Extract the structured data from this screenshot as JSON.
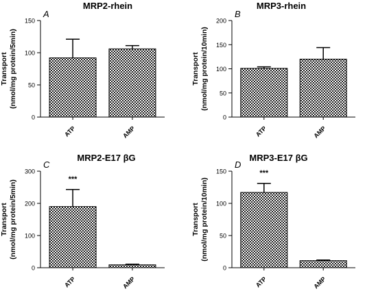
{
  "chart_data": [
    {
      "type": "bar",
      "panel_label": "A",
      "title": "MRP2-rhein",
      "ylabel_line1": "Transport",
      "ylabel_line2": "(nmol/mg protein/5min)",
      "categories": [
        "ATP",
        "AMP"
      ],
      "values": [
        92,
        106
      ],
      "errors": [
        29,
        5
      ],
      "ylim": [
        0,
        150
      ],
      "yticks": [
        0,
        50,
        100,
        150
      ],
      "annotation": ""
    },
    {
      "type": "bar",
      "panel_label": "B",
      "title": "MRP3-rhein",
      "ylabel_line1": "Transport",
      "ylabel_line2": "(nmol/mg protein/10min)",
      "categories": [
        "ATP",
        "AMP"
      ],
      "values": [
        101,
        120
      ],
      "errors": [
        3,
        24
      ],
      "ylim": [
        0,
        200
      ],
      "yticks": [
        0,
        50,
        100,
        150,
        200
      ],
      "annotation": ""
    },
    {
      "type": "bar",
      "panel_label": "C",
      "title": "MRP2-E17 βG",
      "ylabel_line1": "Transport",
      "ylabel_line2": "(nmol/mg protein/5min)",
      "categories": [
        "ATP",
        "AMP"
      ],
      "values": [
        190,
        9
      ],
      "errors": [
        53,
        2
      ],
      "ylim": [
        0,
        300
      ],
      "yticks": [
        0,
        100,
        200,
        300
      ],
      "annotation": "***"
    },
    {
      "type": "bar",
      "panel_label": "D",
      "title": "MRP3-E17 βG",
      "ylabel_line1": "Transport",
      "ylabel_line2": "(nmol/mg protein/10min)",
      "categories": [
        "ATP",
        "AMP"
      ],
      "values": [
        117,
        11
      ],
      "errors": [
        14,
        1
      ],
      "ylim": [
        0,
        150
      ],
      "yticks": [
        0,
        50,
        100,
        150
      ],
      "annotation": "***"
    }
  ]
}
